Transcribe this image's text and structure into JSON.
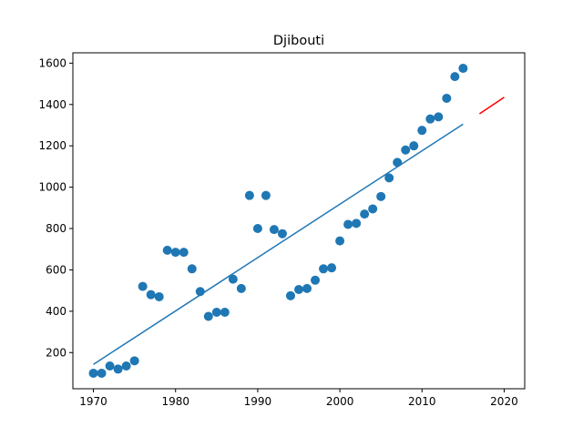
{
  "chart_data": {
    "type": "scatter",
    "title": "Djibouti",
    "xlabel": "",
    "ylabel": "",
    "xlim": [
      1967.5,
      2022.5
    ],
    "ylim": [
      25,
      1650
    ],
    "xticks": [
      1970,
      1980,
      1990,
      2000,
      2010,
      2020
    ],
    "yticks": [
      200,
      400,
      600,
      800,
      1000,
      1200,
      1400,
      1600
    ],
    "grid": false,
    "legend": "none",
    "colors": {
      "points": "#1f77b4",
      "fit": "#1f77b4",
      "projection": "#ff0000"
    },
    "series": [
      {
        "kind": "scatter",
        "x": [
          1970,
          1971,
          1972,
          1973,
          1974,
          1975,
          1976,
          1977,
          1978,
          1979,
          1980,
          1981,
          1982,
          1983,
          1984,
          1985,
          1986,
          1987,
          1988,
          1989,
          1990,
          1991,
          1992,
          1993,
          1994,
          1995,
          1996,
          1997,
          1998,
          1999,
          2000,
          2001,
          2002,
          2003,
          2004,
          2005,
          2006,
          2007,
          2008,
          2009,
          2010,
          2011,
          2012,
          2013,
          2014,
          2015
        ],
        "y": [
          100,
          100,
          135,
          120,
          135,
          160,
          520,
          480,
          470,
          695,
          685,
          685,
          605,
          495,
          375,
          395,
          395,
          555,
          510,
          960,
          800,
          960,
          795,
          775,
          475,
          505,
          510,
          550,
          605,
          610,
          740,
          820,
          825,
          870,
          895,
          955,
          1045,
          1120,
          1180,
          1200,
          1275,
          1330,
          1340,
          1430,
          1535,
          1575
        ]
      },
      {
        "kind": "line",
        "x": [
          1970,
          2015
        ],
        "y": [
          143,
          1305
        ]
      },
      {
        "kind": "line",
        "x": [
          2017,
          2020
        ],
        "y": [
          1355,
          1435
        ]
      }
    ]
  }
}
